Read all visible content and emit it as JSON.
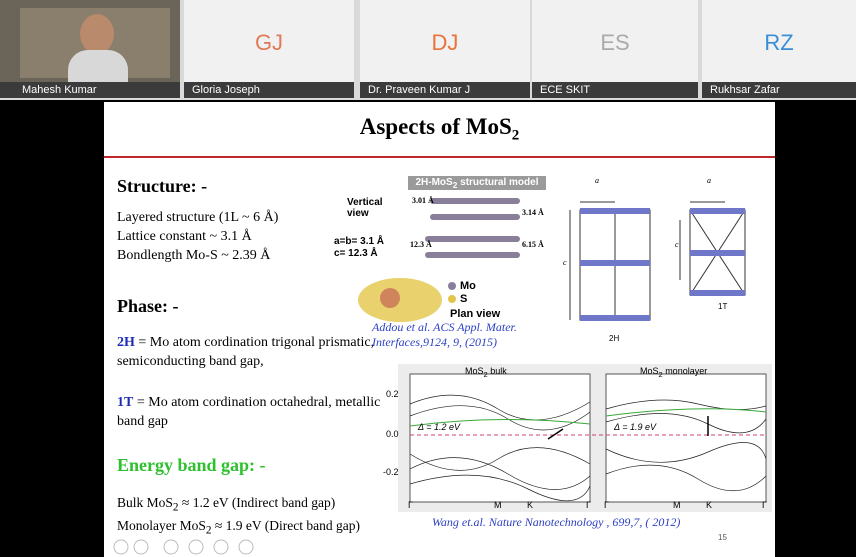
{
  "participants": [
    {
      "name": "Mahesh Kumar"
    },
    {
      "initials": "GJ",
      "name": "Gloria Joseph"
    },
    {
      "initials": "DJ",
      "name": "Dr. Praveen Kumar J"
    },
    {
      "initials": "ES",
      "name": "ECE SKIT"
    },
    {
      "initials": "RZ",
      "name": "Rukhsar Zafar"
    }
  ],
  "slide": {
    "title": {
      "pre": "Aspects of  MoS",
      "sub": "2"
    },
    "structure": {
      "heading": "Structure: -",
      "lines": [
        "Layered structure (1L ~ 6 Å)",
        "Lattice constant ~ 3.1 Å",
        "Bondlength Mo-S ~ 2.39 Å"
      ]
    },
    "phase": {
      "heading": "Phase: -",
      "items": [
        {
          "label": "2H",
          "text": " = Mo atom cordination trigonal prismatic, semiconducting band gap,"
        },
        {
          "label": "1T",
          "text": " = Mo atom cordination octahedral, metallic band gap"
        }
      ]
    },
    "energy": {
      "heading": "Energy band gap: -",
      "lines": [
        {
          "pre": "Bulk MoS",
          "sub": "2",
          "post": " ≈ 1.2 eV (Indirect band gap)"
        },
        {
          "pre": "Monolayer MoS",
          "sub": "2",
          "post": " ≈ 1.9 eV  (Direct band gap)"
        }
      ]
    },
    "structure_figure": {
      "title": {
        "pre": "2H-MoS",
        "sub": "2",
        "post": " structural model"
      },
      "vertical_view": "Vertical view",
      "lattice_a": "a=b= 3.1 Å",
      "lattice_c": "c= 12.3 Å",
      "dims": [
        "3.01 Å",
        "3.14 Å",
        "12.3 Å",
        "6.15 Å"
      ],
      "legend": [
        "Mo",
        "S"
      ],
      "plan_view": "Plan view",
      "citation": "Addou et al. ACS Appl. Mater. Interfaces,9124, 9, (2015)",
      "phases": [
        "2H",
        "1T"
      ],
      "axes": [
        "a",
        "c"
      ]
    },
    "band_figure": {
      "panels": [
        {
          "pre": "MoS",
          "sub": "2",
          "post": " bulk",
          "gap": "Δ = 1.2 eV"
        },
        {
          "pre": "MoS",
          "sub": "2",
          "post": " monolayer",
          "gap": "Δ = 1.9 eV"
        }
      ],
      "yticks": [
        "0.2",
        "0.0",
        "-0.2"
      ],
      "kpoints": [
        "Γ",
        "M",
        "K",
        "Γ"
      ],
      "citation": "Wang et.al. Nature Nanotechnology , 699,7, ( 2012)"
    },
    "page_number": "15"
  }
}
